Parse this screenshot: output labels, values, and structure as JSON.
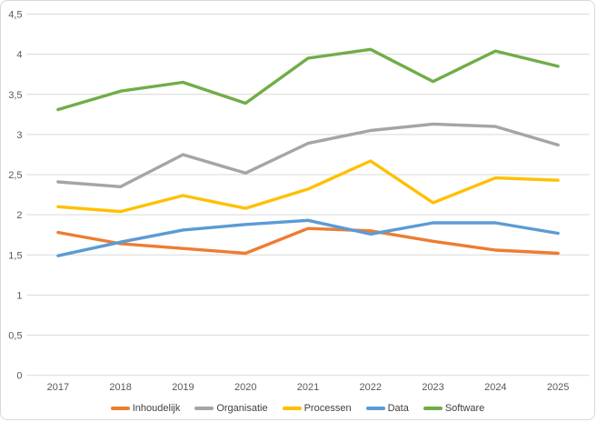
{
  "chart_data": {
    "type": "line",
    "title": "",
    "xlabel": "",
    "ylabel": "",
    "categories": [
      "2017",
      "2018",
      "2019",
      "2020",
      "2021",
      "2022",
      "2023",
      "2024",
      "2025"
    ],
    "series": [
      {
        "name": "Inhoudelijk",
        "color": "#ED7D31",
        "values": [
          1.78,
          1.64,
          1.58,
          1.52,
          1.83,
          1.8,
          1.67,
          1.56,
          1.52
        ]
      },
      {
        "name": "Organisatie",
        "color": "#A5A5A5",
        "values": [
          2.41,
          2.35,
          2.75,
          2.52,
          2.89,
          3.05,
          3.13,
          3.1,
          2.87
        ]
      },
      {
        "name": "Processen",
        "color": "#FFC000",
        "values": [
          2.1,
          2.04,
          2.24,
          2.08,
          2.32,
          2.67,
          2.15,
          2.46,
          2.43
        ]
      },
      {
        "name": "Data",
        "color": "#5B9BD5",
        "values": [
          1.49,
          1.66,
          1.81,
          1.88,
          1.93,
          1.76,
          1.9,
          1.9,
          1.77
        ]
      },
      {
        "name": "Software",
        "color": "#70AD47",
        "values": [
          3.31,
          3.54,
          3.65,
          3.39,
          3.95,
          4.06,
          3.66,
          4.04,
          3.85
        ]
      }
    ],
    "ylim": [
      0,
      4.5
    ],
    "ytick_step": 0.5,
    "ytick_labels": [
      "0",
      "0,5",
      "1",
      "1,5",
      "2",
      "2,5",
      "3",
      "3,5",
      "4",
      "4,5"
    ],
    "grid": "horizontal-only",
    "legend_position": "bottom-center"
  },
  "colors": {
    "background": "#FFFFFF",
    "gridline": "#D9D9D9",
    "frame_border": "#D9D9D9",
    "axis_text": "#595959",
    "legend_text": "#404040"
  }
}
